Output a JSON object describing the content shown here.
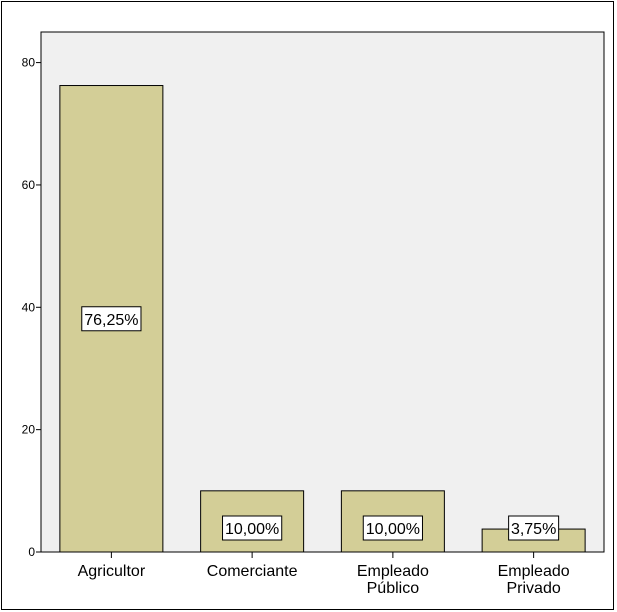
{
  "colors": {
    "plot_background": "#f0f0f0",
    "bar_fill": "#d3ce97",
    "bar_stroke": "#000000",
    "label_box": "#ffffff"
  },
  "chart_data": {
    "type": "bar",
    "categories": [
      [
        "Agricultor"
      ],
      [
        "Comerciante"
      ],
      [
        "Empleado",
        "Público"
      ],
      [
        "Empleado",
        "Privado"
      ]
    ],
    "values": [
      76.25,
      10.0,
      10.0,
      3.75
    ],
    "data_labels": [
      "76,25%",
      "10,00%",
      "10,00%",
      "3,75%"
    ],
    "title": "",
    "xlabel": "",
    "ylabel": "",
    "ylim": [
      0,
      85
    ],
    "yticks": [
      0,
      20,
      40,
      60,
      80
    ],
    "grid": false,
    "legend": "none"
  }
}
